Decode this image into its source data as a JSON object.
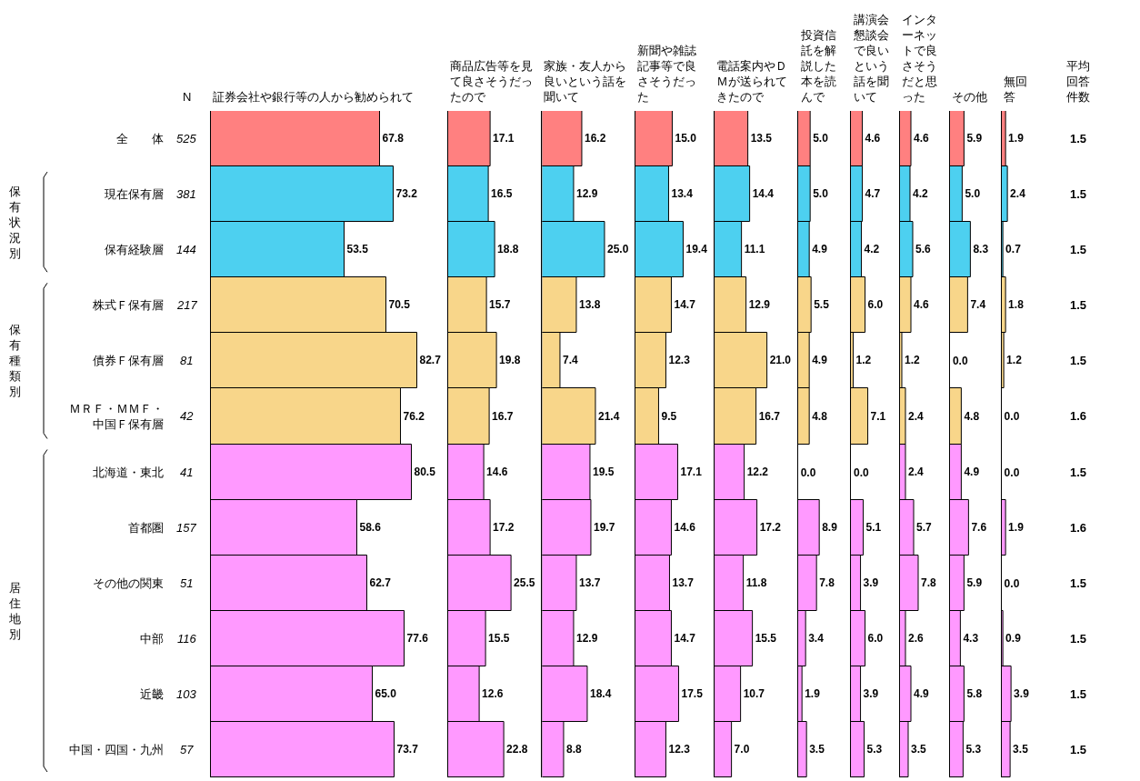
{
  "chart_data": [
    {
      "type": "other",
      "title": "N",
      "annotations": [
        "525",
        "381",
        "144",
        "217",
        "81",
        "42",
        "41",
        "157",
        "51",
        "116",
        "103",
        "57"
      ]
    },
    {
      "type": "bar",
      "orientation": "horizontal",
      "title": "証券会社や銀行等の人から勧められて",
      "tick_labels": "y",
      "annotations": [
        "保有状況別",
        "保有種類別",
        "居住地別"
      ],
      "categories": [
        "全　　体",
        "現在保有層",
        "保有経験層",
        "株式Ｆ保有層",
        "債券Ｆ保有層",
        "ＭＲＦ・ＭＭＦ・中国Ｆ保有層",
        "北海道・東北",
        "首都圏",
        "その他の関東",
        "中部",
        "近畿",
        "中国・四国・九州"
      ],
      "colors": [
        "#ff8080",
        "#4dd0f0",
        "#4dd0f0",
        "#f8d68a",
        "#f8d68a",
        "#f8d68a",
        "#ff99ff",
        "#ff99ff",
        "#ff99ff",
        "#ff99ff",
        "#ff99ff",
        "#ff99ff"
      ],
      "values": [
        67.8,
        73.2,
        53.5,
        70.5,
        82.7,
        76.2,
        80.5,
        58.6,
        62.7,
        77.6,
        65.0,
        73.7
      ],
      "value_labels": [
        "67.8",
        "73.2",
        "53.5",
        "70.5",
        "82.7",
        "76.2",
        "80.5",
        "58.6",
        "62.7",
        "77.6",
        "65.0",
        "73.7"
      ]
    },
    {
      "type": "bar",
      "orientation": "horizontal",
      "title": "商品広告等を見て良さそうだったので",
      "tick_labels": false,
      "categories": [
        "全　　体",
        "現在保有層",
        "保有経験層",
        "株式Ｆ保有層",
        "債券Ｆ保有層",
        "ＭＲＦ・ＭＭＦ・中国Ｆ保有層",
        "北海道・東北",
        "首都圏",
        "その他の関東",
        "中部",
        "近畿",
        "中国・四国・九州"
      ],
      "colors": [
        "#ff8080",
        "#4dd0f0",
        "#4dd0f0",
        "#f8d68a",
        "#f8d68a",
        "#f8d68a",
        "#ff99ff",
        "#ff99ff",
        "#ff99ff",
        "#ff99ff",
        "#ff99ff",
        "#ff99ff"
      ],
      "values": [
        17.1,
        16.5,
        18.8,
        15.7,
        19.8,
        16.7,
        14.6,
        17.2,
        25.5,
        15.5,
        12.6,
        22.8
      ],
      "value_labels": [
        "17.1",
        "16.5",
        "18.8",
        "15.7",
        "19.8",
        "16.7",
        "14.6",
        "17.2",
        "25.5",
        "15.5",
        "12.6",
        "22.8"
      ]
    },
    {
      "type": "bar",
      "orientation": "horizontal",
      "title": "家族・友人から良いという話を聞いて",
      "tick_labels": false,
      "categories": [
        "全　　体",
        "現在保有層",
        "保有経験層",
        "株式Ｆ保有層",
        "債券Ｆ保有層",
        "ＭＲＦ・ＭＭＦ・中国Ｆ保有層",
        "北海道・東北",
        "首都圏",
        "その他の関東",
        "中部",
        "近畿",
        "中国・四国・九州"
      ],
      "colors": [
        "#ff8080",
        "#4dd0f0",
        "#4dd0f0",
        "#f8d68a",
        "#f8d68a",
        "#f8d68a",
        "#ff99ff",
        "#ff99ff",
        "#ff99ff",
        "#ff99ff",
        "#ff99ff",
        "#ff99ff"
      ],
      "values": [
        16.2,
        12.9,
        25.0,
        13.8,
        7.4,
        21.4,
        19.5,
        19.7,
        13.7,
        12.9,
        18.4,
        8.8
      ],
      "value_labels": [
        "16.2",
        "12.9",
        "25.0",
        "13.8",
        "7.4",
        "21.4",
        "19.5",
        "19.7",
        "13.7",
        "12.9",
        "18.4",
        "8.8"
      ]
    },
    {
      "type": "bar",
      "orientation": "horizontal",
      "title": "新聞や雑誌記事等で良さそうだった",
      "tick_labels": false,
      "categories": [
        "全　　体",
        "現在保有層",
        "保有経験層",
        "株式Ｆ保有層",
        "債券Ｆ保有層",
        "ＭＲＦ・ＭＭＦ・中国Ｆ保有層",
        "北海道・東北",
        "首都圏",
        "その他の関東",
        "中部",
        "近畿",
        "中国・四国・九州"
      ],
      "colors": [
        "#ff8080",
        "#4dd0f0",
        "#4dd0f0",
        "#f8d68a",
        "#f8d68a",
        "#f8d68a",
        "#ff99ff",
        "#ff99ff",
        "#ff99ff",
        "#ff99ff",
        "#ff99ff",
        "#ff99ff"
      ],
      "values": [
        15.0,
        13.4,
        19.4,
        14.7,
        12.3,
        9.5,
        17.1,
        14.6,
        13.7,
        14.7,
        17.5,
        12.3
      ],
      "value_labels": [
        "15.0",
        "13.4",
        "19.4",
        "14.7",
        "12.3",
        "9.5",
        "17.1",
        "14.6",
        "13.7",
        "14.7",
        "17.5",
        "12.3"
      ]
    },
    {
      "type": "bar",
      "orientation": "horizontal",
      "title": "電話案内やＤＭが送られてきたので",
      "tick_labels": false,
      "categories": [
        "全　　体",
        "現在保有層",
        "保有経験層",
        "株式Ｆ保有層",
        "債券Ｆ保有層",
        "ＭＲＦ・ＭＭＦ・中国Ｆ保有層",
        "北海道・東北",
        "首都圏",
        "その他の関東",
        "中部",
        "近畿",
        "中国・四国・九州"
      ],
      "colors": [
        "#ff8080",
        "#4dd0f0",
        "#4dd0f0",
        "#f8d68a",
        "#f8d68a",
        "#f8d68a",
        "#ff99ff",
        "#ff99ff",
        "#ff99ff",
        "#ff99ff",
        "#ff99ff",
        "#ff99ff"
      ],
      "values": [
        13.5,
        14.4,
        11.1,
        12.9,
        21.0,
        16.7,
        12.2,
        17.2,
        11.8,
        15.5,
        10.7,
        7.0
      ],
      "value_labels": [
        "13.5",
        "14.4",
        "11.1",
        "12.9",
        "21.0",
        "16.7",
        "12.2",
        "17.2",
        "11.8",
        "15.5",
        "10.7",
        "7.0"
      ]
    },
    {
      "type": "bar",
      "orientation": "horizontal",
      "title": "投資信託を解説した本を読んで",
      "tick_labels": false,
      "categories": [
        "全　　体",
        "現在保有層",
        "保有経験層",
        "株式Ｆ保有層",
        "債券Ｆ保有層",
        "ＭＲＦ・ＭＭＦ・中国Ｆ保有層",
        "北海道・東北",
        "首都圏",
        "その他の関東",
        "中部",
        "近畿",
        "中国・四国・九州"
      ],
      "colors": [
        "#ff8080",
        "#4dd0f0",
        "#4dd0f0",
        "#f8d68a",
        "#f8d68a",
        "#f8d68a",
        "#ff99ff",
        "#ff99ff",
        "#ff99ff",
        "#ff99ff",
        "#ff99ff",
        "#ff99ff"
      ],
      "values": [
        5.0,
        5.0,
        4.9,
        5.5,
        4.9,
        4.8,
        0.0,
        8.9,
        7.8,
        3.4,
        1.9,
        3.5
      ],
      "value_labels": [
        "5.0",
        "5.0",
        "4.9",
        "5.5",
        "4.9",
        "4.8",
        "0.0",
        "8.9",
        "7.8",
        "3.4",
        "1.9",
        "3.5"
      ]
    },
    {
      "type": "bar",
      "orientation": "horizontal",
      "title": "講演会懇談会で良いという話を聞いて",
      "tick_labels": false,
      "categories": [
        "全　　体",
        "現在保有層",
        "保有経験層",
        "株式Ｆ保有層",
        "債券Ｆ保有層",
        "ＭＲＦ・ＭＭＦ・中国Ｆ保有層",
        "北海道・東北",
        "首都圏",
        "その他の関東",
        "中部",
        "近畿",
        "中国・四国・九州"
      ],
      "colors": [
        "#ff8080",
        "#4dd0f0",
        "#4dd0f0",
        "#f8d68a",
        "#f8d68a",
        "#f8d68a",
        "#ff99ff",
        "#ff99ff",
        "#ff99ff",
        "#ff99ff",
        "#ff99ff",
        "#ff99ff"
      ],
      "values": [
        4.6,
        4.7,
        4.2,
        6.0,
        1.2,
        7.1,
        0.0,
        5.1,
        3.9,
        6.0,
        3.9,
        5.3
      ],
      "value_labels": [
        "4.6",
        "4.7",
        "4.2",
        "6.0",
        "1.2",
        "7.1",
        "0.0",
        "5.1",
        "3.9",
        "6.0",
        "3.9",
        "5.3"
      ]
    },
    {
      "type": "bar",
      "orientation": "horizontal",
      "title": "インターネットで良さそうだと思った",
      "tick_labels": false,
      "categories": [
        "全　　体",
        "現在保有層",
        "保有経験層",
        "株式Ｆ保有層",
        "債券Ｆ保有層",
        "ＭＲＦ・ＭＭＦ・中国Ｆ保有層",
        "北海道・東北",
        "首都圏",
        "その他の関東",
        "中部",
        "近畿",
        "中国・四国・九州"
      ],
      "colors": [
        "#ff8080",
        "#4dd0f0",
        "#4dd0f0",
        "#f8d68a",
        "#f8d68a",
        "#f8d68a",
        "#ff99ff",
        "#ff99ff",
        "#ff99ff",
        "#ff99ff",
        "#ff99ff",
        "#ff99ff"
      ],
      "values": [
        4.6,
        4.2,
        5.6,
        4.6,
        1.2,
        2.4,
        2.4,
        5.7,
        7.8,
        2.6,
        4.9,
        3.5
      ],
      "value_labels": [
        "4.6",
        "4.2",
        "5.6",
        "4.6",
        "1.2",
        "2.4",
        "2.4",
        "5.7",
        "7.8",
        "2.6",
        "4.9",
        "3.5"
      ]
    },
    {
      "type": "bar",
      "orientation": "horizontal",
      "title": "その他",
      "tick_labels": false,
      "categories": [
        "全　　体",
        "現在保有層",
        "保有経験層",
        "株式Ｆ保有層",
        "債券Ｆ保有層",
        "ＭＲＦ・ＭＭＦ・中国Ｆ保有層",
        "北海道・東北",
        "首都圏",
        "その他の関東",
        "中部",
        "近畿",
        "中国・四国・九州"
      ],
      "colors": [
        "#ff8080",
        "#4dd0f0",
        "#4dd0f0",
        "#f8d68a",
        "#f8d68a",
        "#f8d68a",
        "#ff99ff",
        "#ff99ff",
        "#ff99ff",
        "#ff99ff",
        "#ff99ff",
        "#ff99ff"
      ],
      "values": [
        5.9,
        5.0,
        8.3,
        7.4,
        0.0,
        4.8,
        4.9,
        7.6,
        5.9,
        4.3,
        5.8,
        5.3
      ],
      "value_labels": [
        "5.9",
        "5.0",
        "8.3",
        "7.4",
        "0.0",
        "4.8",
        "4.9",
        "7.6",
        "5.9",
        "4.3",
        "5.8",
        "5.3"
      ]
    },
    {
      "type": "bar",
      "orientation": "horizontal",
      "title": "無回答",
      "tick_labels": false,
      "categories": [
        "全　　体",
        "現在保有層",
        "保有経験層",
        "株式Ｆ保有層",
        "債券Ｆ保有層",
        "ＭＲＦ・ＭＭＦ・中国Ｆ保有層",
        "北海道・東北",
        "首都圏",
        "その他の関東",
        "中部",
        "近畿",
        "中国・四国・九州"
      ],
      "colors": [
        "#ff8080",
        "#4dd0f0",
        "#4dd0f0",
        "#f8d68a",
        "#f8d68a",
        "#f8d68a",
        "#ff99ff",
        "#ff99ff",
        "#ff99ff",
        "#ff99ff",
        "#ff99ff",
        "#ff99ff"
      ],
      "values": [
        1.9,
        2.4,
        0.7,
        1.8,
        1.2,
        0.0,
        0.0,
        1.9,
        0.0,
        0.9,
        3.9,
        3.5
      ],
      "value_labels": [
        "1.9",
        "2.4",
        "0.7",
        "1.8",
        "1.2",
        "0.0",
        "0.0",
        "1.9",
        "0.0",
        "0.9",
        "3.9",
        "3.5"
      ]
    },
    {
      "type": "other",
      "title": "平均回答件数",
      "annotations": [
        "1.5",
        "1.5",
        "1.5",
        "1.5",
        "1.5",
        "1.6",
        "1.5",
        "1.6",
        "1.5",
        "1.5",
        "1.5",
        "1.5"
      ]
    }
  ]
}
